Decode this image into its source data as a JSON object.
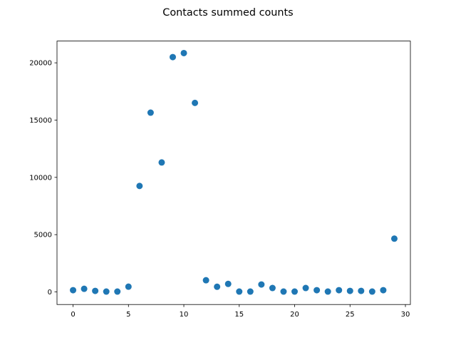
{
  "chart_data": {
    "type": "scatter",
    "title": "Contacts summed counts",
    "xlabel": "",
    "ylabel": "",
    "xlim": [
      -1.45,
      30.45
    ],
    "ylim": [
      -1100,
      21900
    ],
    "xticks": [
      0,
      5,
      10,
      15,
      20,
      25,
      30
    ],
    "yticks": [
      0,
      5000,
      10000,
      15000,
      20000
    ],
    "grid": false,
    "legend": "none",
    "marker_color": "#1f77b4",
    "x": [
      0,
      1,
      2,
      3,
      4,
      5,
      6,
      7,
      8,
      9,
      10,
      11,
      12,
      13,
      14,
      15,
      16,
      17,
      18,
      19,
      20,
      21,
      22,
      23,
      24,
      25,
      26,
      27,
      28,
      29
    ],
    "y": [
      150,
      270,
      90,
      30,
      30,
      460,
      9250,
      15650,
      11300,
      20500,
      20850,
      16500,
      1020,
      450,
      700,
      30,
      30,
      650,
      340,
      30,
      30,
      340,
      150,
      30,
      150,
      90,
      90,
      30,
      150,
      4650
    ]
  }
}
